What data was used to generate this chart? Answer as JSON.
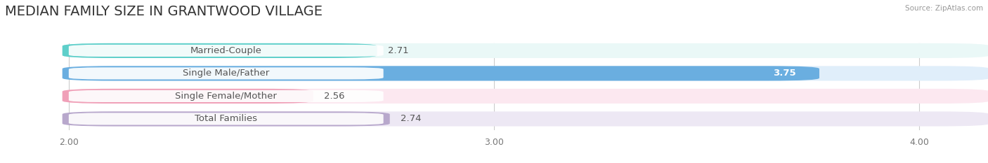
{
  "title": "MEDIAN FAMILY SIZE IN GRANTWOOD VILLAGE",
  "source": "Source: ZipAtlas.com",
  "categories": [
    "Married-Couple",
    "Single Male/Father",
    "Single Female/Mother",
    "Total Families"
  ],
  "values": [
    2.71,
    3.75,
    2.56,
    2.74
  ],
  "bar_colors": [
    "#5ecfca",
    "#6aaee0",
    "#f0a0b8",
    "#b8a8cc"
  ],
  "bar_bg_colors": [
    "#eaf8f7",
    "#e0eefa",
    "#fce8f0",
    "#ede8f4"
  ],
  "label_pill_color": "#ffffff",
  "label_text_color": "#555555",
  "xlim_min": 1.85,
  "xlim_max": 4.15,
  "xstart": 2.0,
  "xticks": [
    2.0,
    3.0,
    4.0
  ],
  "xtick_labels": [
    "2.00",
    "3.00",
    "4.00"
  ],
  "label_fontsize": 9.5,
  "title_fontsize": 14,
  "value_fontsize": 9.5,
  "bar_height": 0.62,
  "figsize": [
    14.06,
    2.33
  ],
  "dpi": 100,
  "bg_color": "#ffffff"
}
